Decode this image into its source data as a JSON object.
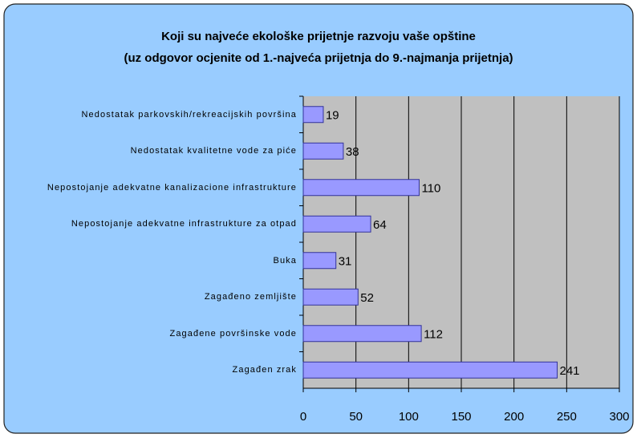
{
  "chart_data": {
    "type": "bar",
    "orientation": "horizontal",
    "title": "Koji su najveće ekološke prijetnje razvoju vaše opštine",
    "subtitle": "(uz odgovor ocjenite od 1.-najveća prijetnja do 9.-najmanja prijetnja)",
    "categories": [
      "Nedostatak parkovskih/rekreacijskih površina",
      "Nedostatak kvalitetne vode za piće",
      "Nepostojanje adekvatne kanalizacione infrastrukture",
      "Nepostojanje adekvatne infrastrukture za otpad",
      "Buka",
      "Zagađeno zemljište",
      "Zagađene površinske vode",
      "Zagađen zrak"
    ],
    "values": [
      19,
      38,
      110,
      64,
      31,
      52,
      112,
      241
    ],
    "color": "#9999ff",
    "xlim": [
      0,
      300
    ],
    "xticks": [
      0,
      50,
      100,
      150,
      200,
      250,
      300
    ],
    "grid": true
  }
}
